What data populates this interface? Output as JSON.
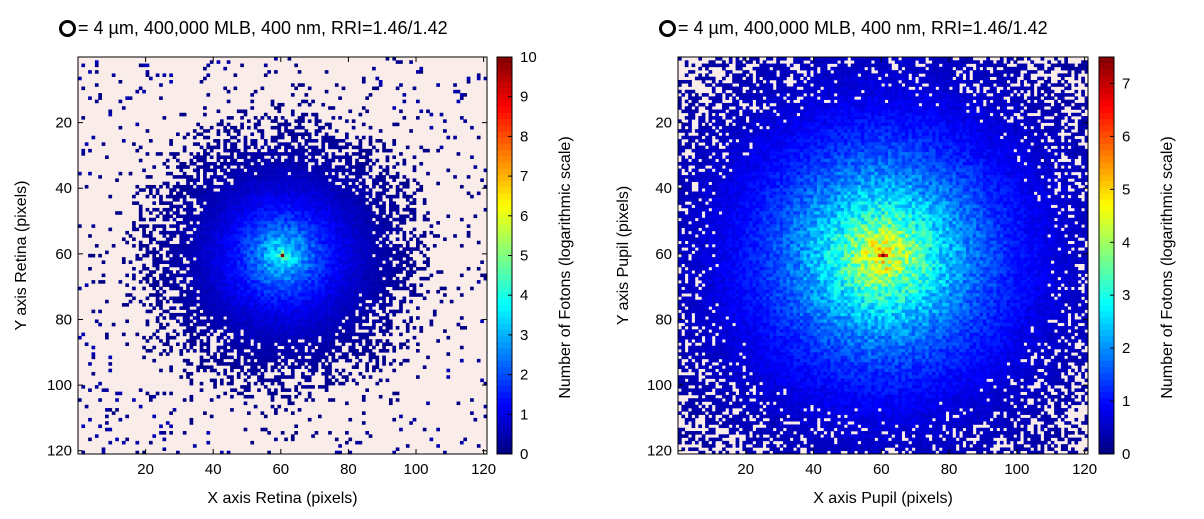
{
  "chart_data": [
    {
      "type": "heatmap",
      "title_symbol": "ring-icon",
      "title": "= 4 µm, 400,000 MLB, 400 nm, RRI=1.46/1.42",
      "xlabel": "X axis Retina (pixels)",
      "ylabel": "Y axis Retina (pixels)",
      "colorbar_label": "Number of Fotons (logarithmic scale)",
      "xlim": [
        0,
        121
      ],
      "ylim": [
        121,
        0
      ],
      "x_ticks": [
        20,
        40,
        60,
        80,
        100,
        120
      ],
      "y_ticks": [
        20,
        40,
        60,
        80,
        100,
        120
      ],
      "clim": [
        0,
        10
      ],
      "colorbar_ticks": [
        0,
        1,
        2,
        3,
        4,
        5,
        6,
        7,
        8,
        9,
        10
      ],
      "colormap": "jet",
      "background_color": "#f9ece9",
      "grid_size": 121,
      "peak_center": [
        61,
        61
      ],
      "peak_value": 10,
      "halo_radius": 48
    },
    {
      "type": "heatmap",
      "title_symbol": "ring-icon",
      "title": "= 4 µm, 400,000 MLB, 400 nm, RRI=1.46/1.42",
      "xlabel": "X axis Pupil (pixels)",
      "ylabel": "Y axis Pupil (pixels)",
      "colorbar_label": "Number of Fotons (logarithmic scale)",
      "xlim": [
        0,
        121
      ],
      "ylim": [
        121,
        0
      ],
      "x_ticks": [
        20,
        40,
        60,
        80,
        100,
        120
      ],
      "y_ticks": [
        20,
        40,
        60,
        80,
        100,
        120
      ],
      "clim": [
        0,
        7.5
      ],
      "colorbar_ticks": [
        0,
        1,
        2,
        3,
        4,
        5,
        6,
        7
      ],
      "colormap": "jet",
      "background_color": "#f9ece9",
      "grid_size": 121,
      "peak_center": [
        61,
        61
      ],
      "peak_value": 7.5,
      "halo_radius": 75
    }
  ]
}
